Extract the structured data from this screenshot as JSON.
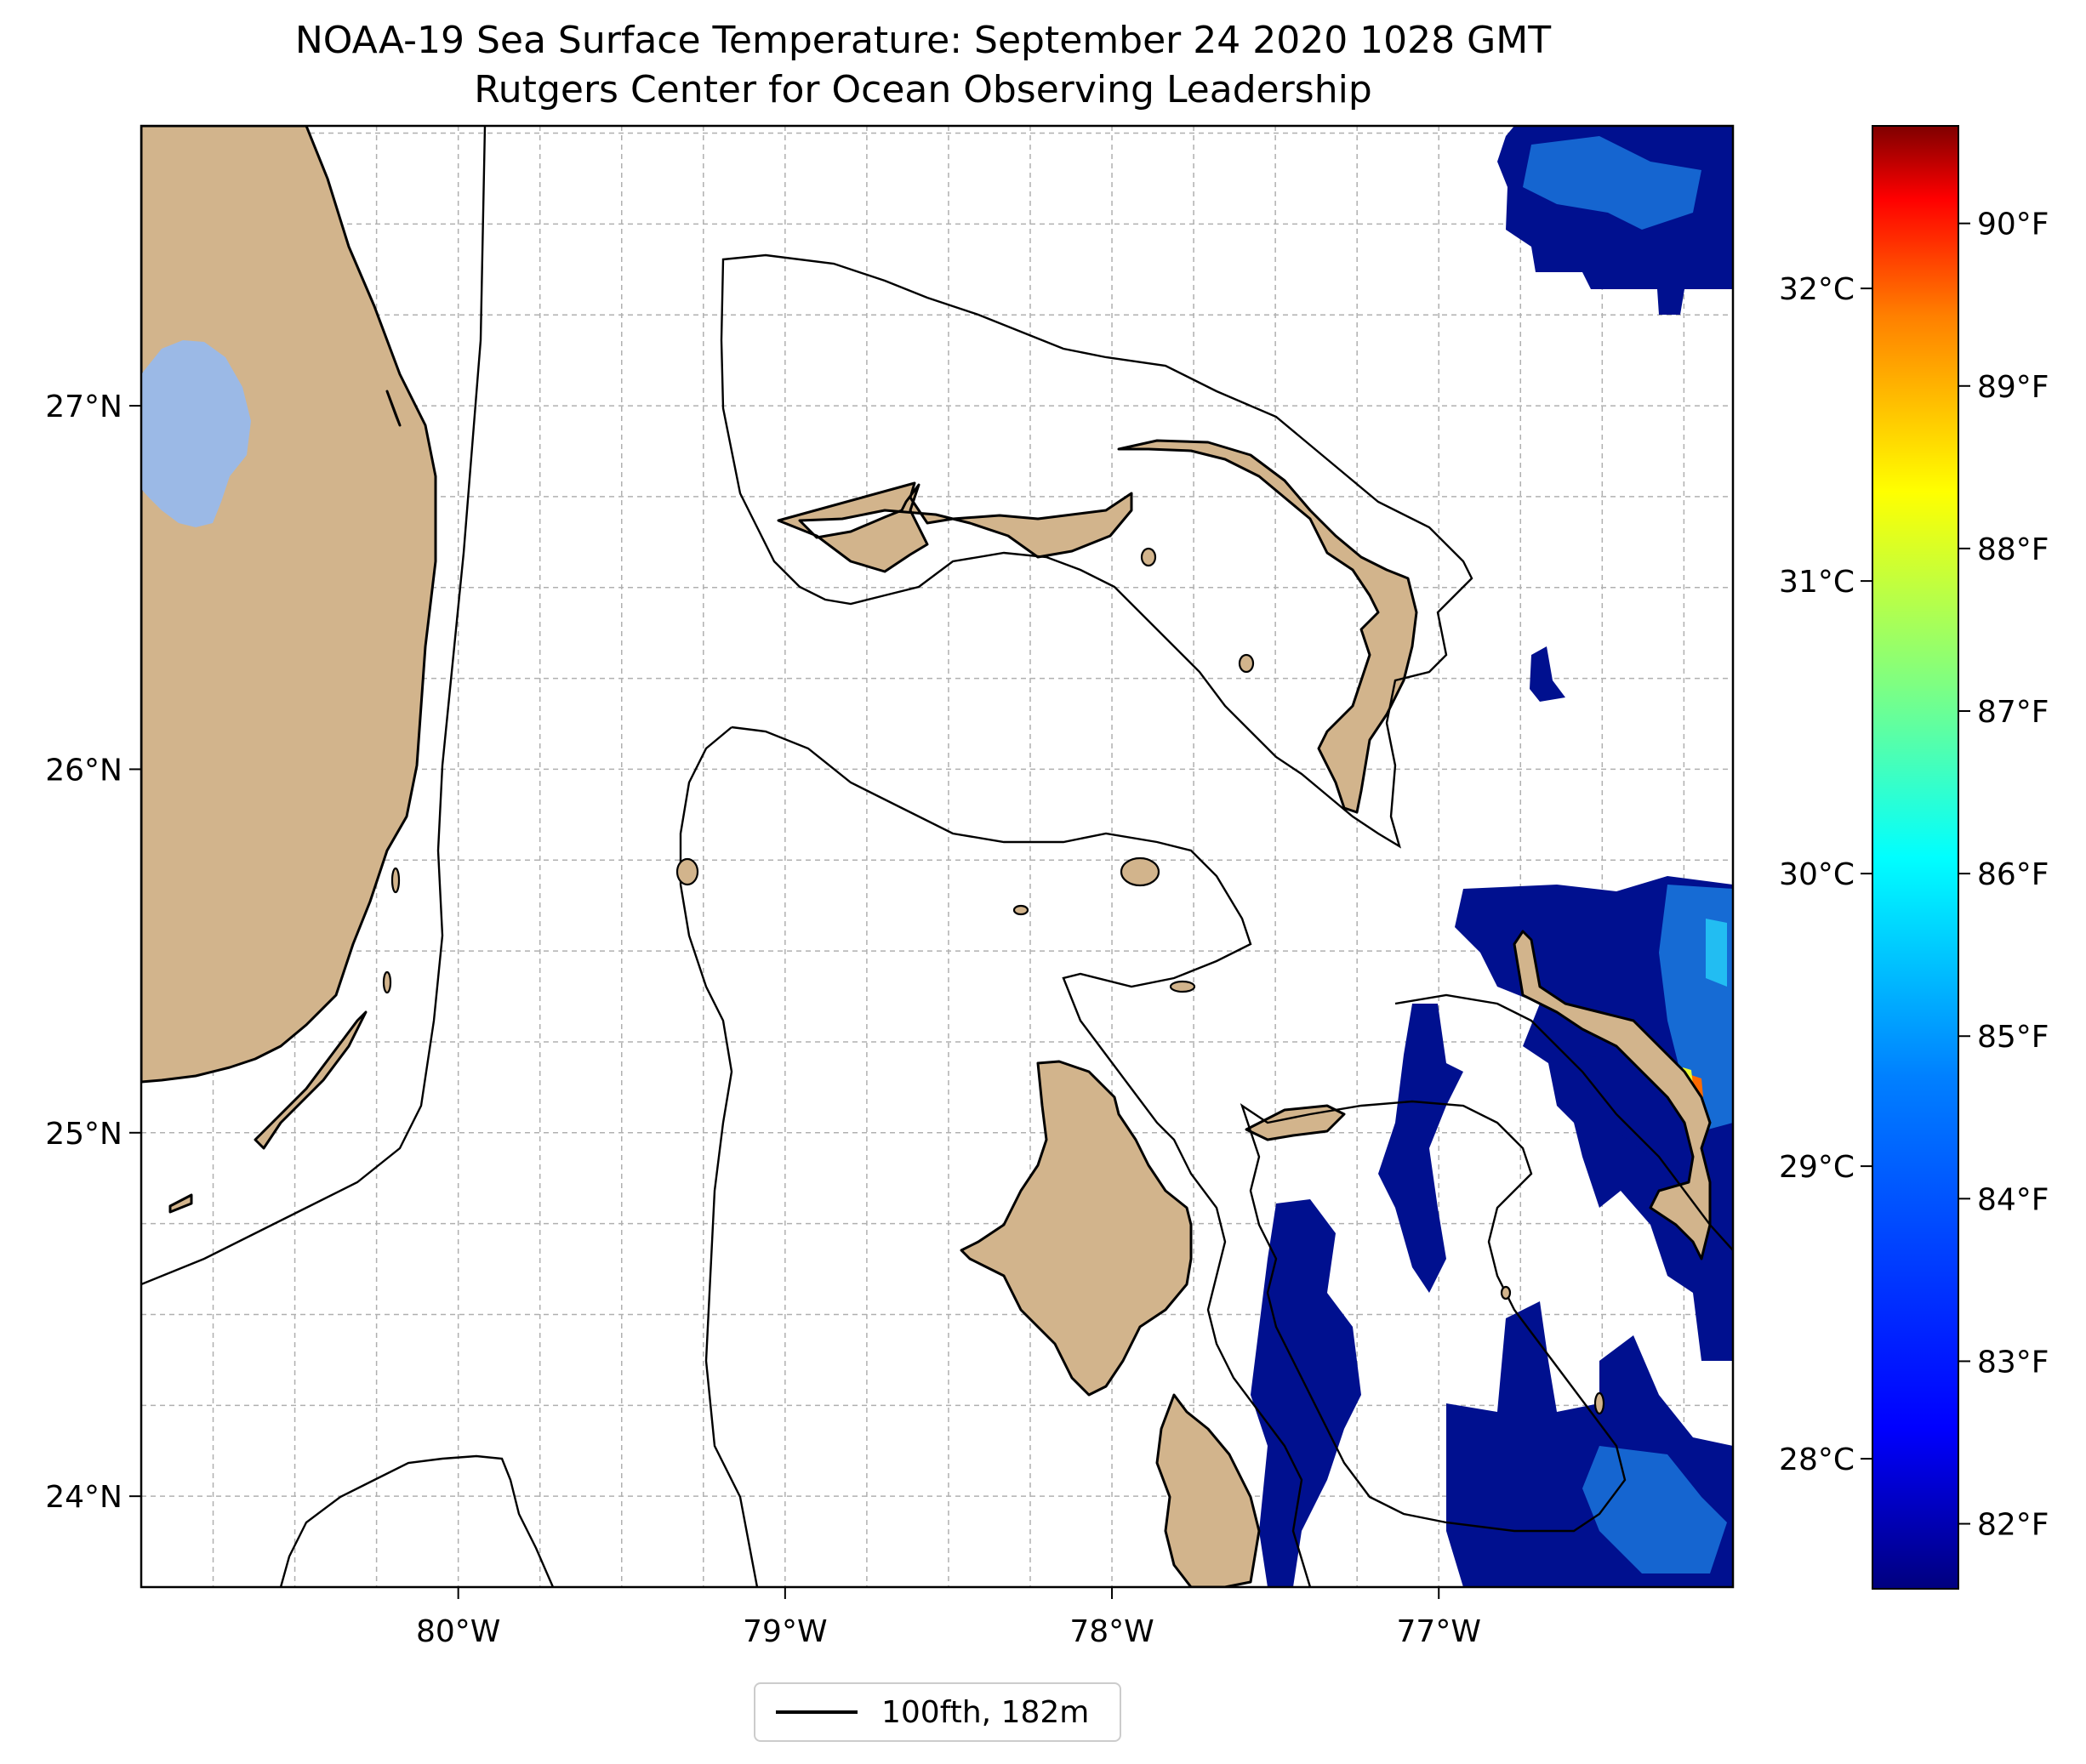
{
  "title": {
    "line1": "NOAA-19 Sea Surface Temperature: September 24 2020 1028 GMT",
    "line2": "Rutgers Center for Ocean Observing Leadership"
  },
  "map": {
    "lon_range": [
      -80.97,
      -76.1
    ],
    "lat_range": [
      23.75,
      27.77
    ],
    "lon_ticks": [
      {
        "value": -80,
        "label": "80°W"
      },
      {
        "value": -79,
        "label": "79°W"
      },
      {
        "value": -78,
        "label": "78°W"
      },
      {
        "value": -77,
        "label": "77°W"
      }
    ],
    "lat_ticks": [
      {
        "value": 24,
        "label": "24°N"
      },
      {
        "value": 25,
        "label": "25°N"
      },
      {
        "value": 26,
        "label": "26°N"
      },
      {
        "value": 27,
        "label": "27°N"
      }
    ],
    "grid": true,
    "land_color": "#d2b48c",
    "lake_color": "#9bb9e6",
    "ocean_color": "#ffffff"
  },
  "colorbar": {
    "colormap": "jet",
    "colors": [
      "#00007f",
      "#0000ff",
      "#0080ff",
      "#00ffff",
      "#80ff80",
      "#ffff00",
      "#ff8000",
      "#ff0000",
      "#7f0000"
    ],
    "fahrenheit_ticks": [
      "82°F",
      "83°F",
      "84°F",
      "85°F",
      "86°F",
      "87°F",
      "88°F",
      "89°F",
      "90°F"
    ],
    "celsius_ticks": [
      "28°C",
      "29°C",
      "30°C",
      "31°C",
      "32°C"
    ]
  },
  "legend": {
    "label": "100fth, 182m"
  }
}
